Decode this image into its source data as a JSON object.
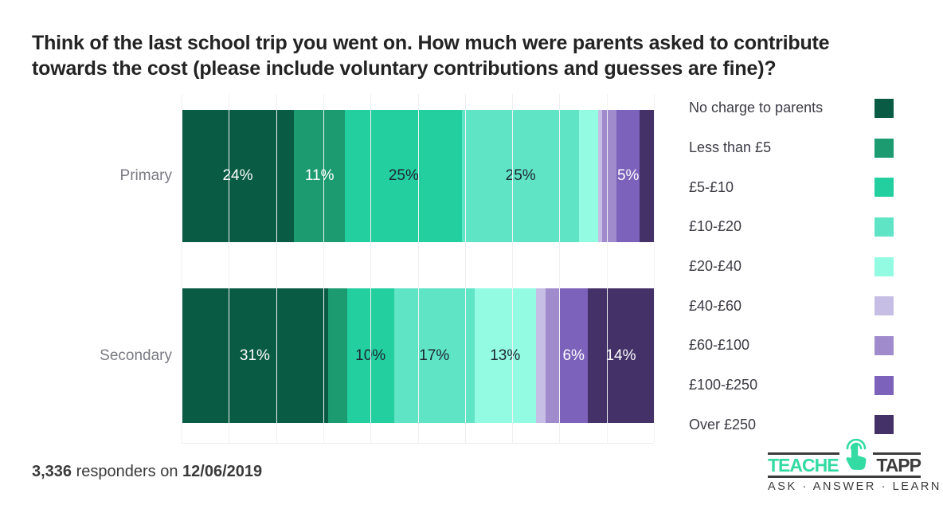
{
  "title": "Think of the last school trip you went on. How much were parents asked to contribute\ntowards the cost (please include voluntary contributions and guesses are fine)?",
  "footer": {
    "count": "3,336",
    "middle": " responders on ",
    "date": "12/06/2019"
  },
  "logo": {
    "brand_left": "TEACHER",
    "brand_right": "TAPP",
    "tagline": "ASK · ANSWER · LEARN",
    "teal": "#33dba2",
    "dark": "#3b3b3b"
  },
  "chart_data": {
    "type": "bar",
    "orientation": "horizontal",
    "stacked": true,
    "unit": "%",
    "categories": [
      "Primary",
      "Secondary"
    ],
    "legend": [
      "No charge to parents",
      "Less than £5",
      "£5-£10",
      "£10-£20",
      "£20-£40",
      "£40-£60",
      "£60-£100",
      "£100-£250",
      "Over £250"
    ],
    "colors": [
      "#095b43",
      "#1c9b71",
      "#23ce9f",
      "#5fe4c5",
      "#93fbe1",
      "#c7bee5",
      "#a08ccc",
      "#7c62ba",
      "#443168"
    ],
    "label_colors": [
      "#ffffff",
      "#ffffff",
      "#1d2633",
      "#1d2633",
      "#1d2633",
      "#1d2633",
      "#ffffff",
      "#ffffff",
      "#ffffff"
    ],
    "rows": [
      {
        "category": "Primary",
        "values": [
          24,
          11,
          25,
          25,
          4,
          1,
          3,
          5,
          3
        ],
        "labels": [
          "24%",
          "11%",
          "25%",
          "25%",
          "",
          "",
          "",
          "5%",
          ""
        ]
      },
      {
        "category": "Secondary",
        "values": [
          31,
          4,
          10,
          17,
          13,
          2,
          3,
          6,
          14
        ],
        "labels": [
          "31%",
          "",
          "10%",
          "17%",
          "13%",
          "",
          "",
          "6%",
          "14%"
        ]
      }
    ],
    "x_axis": {
      "min": 0,
      "max": 100,
      "gridline_step": 10,
      "tick_labels_visible": false
    },
    "legend_position": "right",
    "grid": true,
    "gridline_color": "#f1f1f4"
  }
}
